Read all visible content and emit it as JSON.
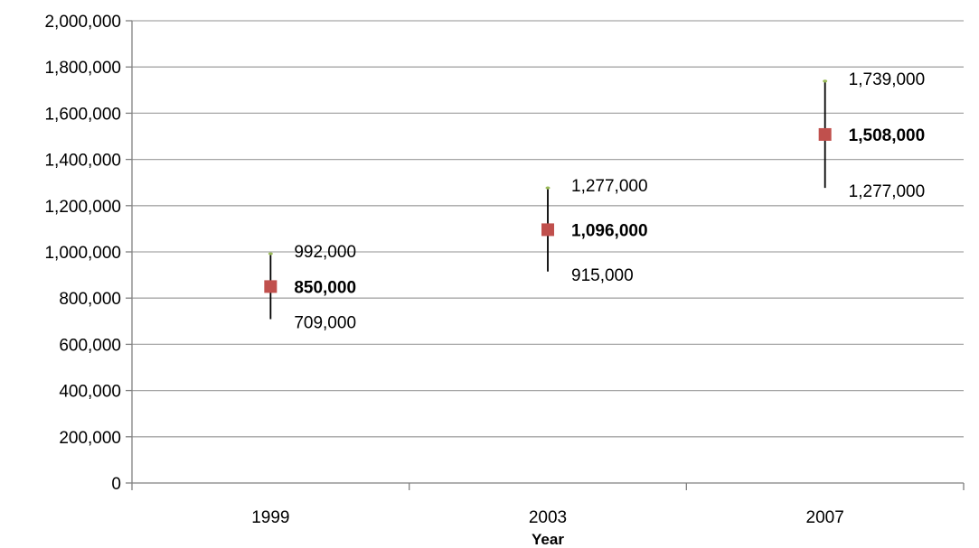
{
  "chart_data": {
    "type": "scatter",
    "title": "",
    "xlabel": "Year",
    "ylabel": "",
    "categories": [
      "1999",
      "2003",
      "2007"
    ],
    "ylim": [
      0,
      2000000
    ],
    "ytick_step": 200000,
    "ytick_labels": [
      "0",
      "200,000",
      "400,000",
      "600,000",
      "800,000",
      "1,000,000",
      "1,200,000",
      "1,400,000",
      "1,600,000",
      "1,800,000",
      "2,000,000"
    ],
    "grid": true,
    "legend": "none",
    "colors": {
      "marker": "#c0504d",
      "high_marker": "#9bbb59",
      "error_bar": "#000000",
      "grid": "#a6a6a6",
      "axis": "#808080"
    },
    "points": [
      {
        "x": "1999",
        "value": 850000,
        "low": 709000,
        "high": 992000,
        "value_label": "850,000",
        "low_label": "709,000",
        "high_label": "992,000"
      },
      {
        "x": "2003",
        "value": 1096000,
        "low": 915000,
        "high": 1277000,
        "value_label": "1,096,000",
        "low_label": "915,000",
        "high_label": "1,277,000"
      },
      {
        "x": "2007",
        "value": 1508000,
        "low": 1277000,
        "high": 1739000,
        "value_label": "1,508,000",
        "low_label": "1,277,000",
        "high_label": "1,739,000"
      }
    ]
  }
}
